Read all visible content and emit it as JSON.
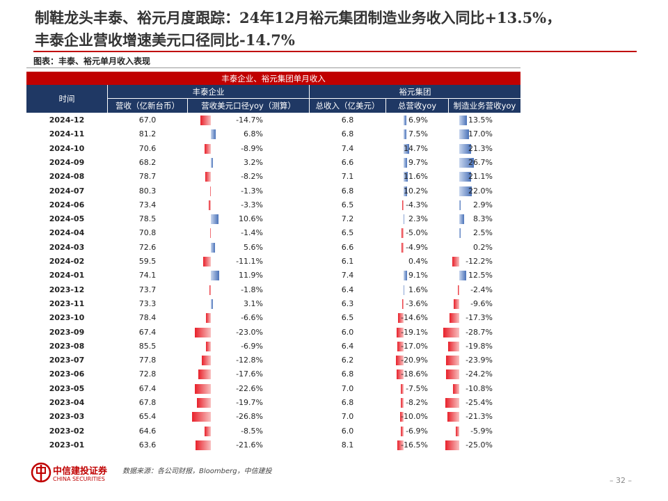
{
  "header": {
    "title_line1": "制鞋龙头丰泰、裕元月度跟踪：24年12月裕元集团制造业务收入同比+13.5%，",
    "title_line2": "丰泰企业营收增速美元口径同比-14.7%"
  },
  "caption": "图表：丰泰、裕元单月收入表现",
  "table": {
    "title": "丰泰企业、裕元集团单月收入",
    "time_header": "时间",
    "group_headers": [
      "丰泰企业",
      "裕元集团"
    ],
    "columns": [
      "营收（亿新台币）",
      "营收美元口径yoy（测算）",
      "总收入（亿美元）",
      "总营收yoy",
      "制造业务营收yoy"
    ],
    "rows": [
      [
        "2024-12",
        "67.0",
        "-14.7%",
        "6.8",
        "6.9%",
        "13.5%"
      ],
      [
        "2024-11",
        "81.2",
        "6.8%",
        "6.8",
        "7.5%",
        "17.0%"
      ],
      [
        "2024-10",
        "70.6",
        "-8.9%",
        "7.4",
        "14.7%",
        "21.3%"
      ],
      [
        "2024-09",
        "68.2",
        "3.2%",
        "6.6",
        "9.7%",
        "26.7%"
      ],
      [
        "2024-08",
        "78.7",
        "-8.2%",
        "7.1",
        "11.6%",
        "21.1%"
      ],
      [
        "2024-07",
        "80.3",
        "-1.3%",
        "6.8",
        "10.2%",
        "22.0%"
      ],
      [
        "2024-06",
        "73.4",
        "-3.3%",
        "6.5",
        "-4.3%",
        "2.9%"
      ],
      [
        "2024-05",
        "78.5",
        "10.6%",
        "7.2",
        "2.3%",
        "8.3%"
      ],
      [
        "2024-04",
        "70.8",
        "-1.4%",
        "6.5",
        "-5.0%",
        "2.5%"
      ],
      [
        "2024-03",
        "72.6",
        "5.6%",
        "6.6",
        "-4.9%",
        "0.2%"
      ],
      [
        "2024-02",
        "59.5",
        "-11.1%",
        "6.1",
        "0.4%",
        "-12.2%"
      ],
      [
        "2024-01",
        "74.1",
        "11.9%",
        "7.4",
        "9.1%",
        "12.5%"
      ],
      [
        "2023-12",
        "73.7",
        "-1.8%",
        "6.4",
        "1.6%",
        "-2.4%"
      ],
      [
        "2023-11",
        "73.3",
        "3.1%",
        "6.3",
        "-3.6%",
        "-9.6%"
      ],
      [
        "2023-10",
        "78.4",
        "-6.6%",
        "6.5",
        "-14.6%",
        "-17.3%"
      ],
      [
        "2023-09",
        "67.4",
        "-23.0%",
        "6.0",
        "-19.1%",
        "-28.7%"
      ],
      [
        "2023-08",
        "85.5",
        "-6.9%",
        "6.4",
        "-17.0%",
        "-19.8%"
      ],
      [
        "2023-07",
        "77.8",
        "-12.8%",
        "6.2",
        "-20.9%",
        "-23.9%"
      ],
      [
        "2023-06",
        "72.8",
        "-17.6%",
        "6.8",
        "-18.6%",
        "-24.2%"
      ],
      [
        "2023-05",
        "67.4",
        "-22.6%",
        "7.0",
        "-7.5%",
        "-10.8%"
      ],
      [
        "2023-04",
        "67.8",
        "-19.7%",
        "6.8",
        "-8.2%",
        "-25.4%"
      ],
      [
        "2023-03",
        "65.4",
        "-26.8%",
        "7.0",
        "-10.0%",
        "-21.3%"
      ],
      [
        "2023-02",
        "64.6",
        "-8.5%",
        "6.0",
        "-6.9%",
        "-5.9%"
      ],
      [
        "2023-01",
        "63.6",
        "-21.6%",
        "8.1",
        "-16.5%",
        "-25.0%"
      ]
    ]
  },
  "source": "数据来源：各公司财报，Bloomberg，中信建投",
  "logo": {
    "cn": "中信建投证券",
    "en": "CHINA SECURITIES"
  },
  "page": "– 32 –"
}
